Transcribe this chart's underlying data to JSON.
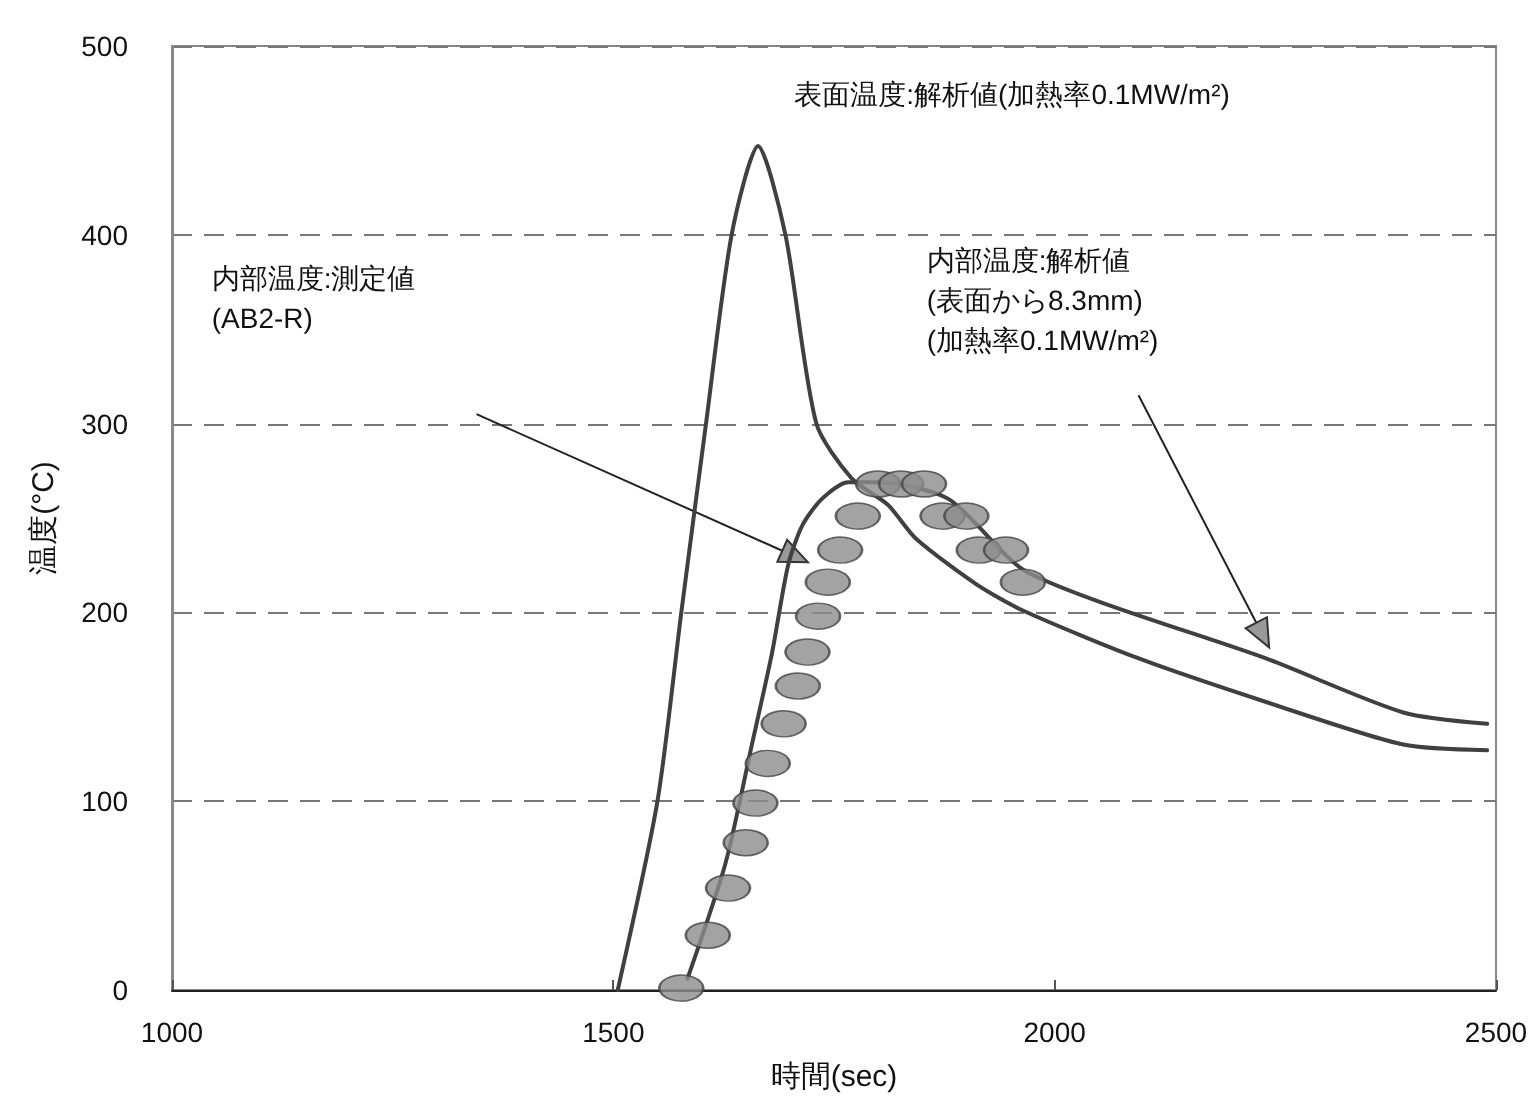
{
  "chart_data": {
    "type": "line",
    "xlabel": "時間(sec)",
    "ylabel": "温度(°C)",
    "xlim": [
      1000,
      2500
    ],
    "xticks": [
      1000,
      1500,
      2000,
      2500
    ],
    "ylim": [
      0,
      500
    ],
    "yticks": [
      0,
      100,
      200,
      300,
      400,
      500
    ],
    "grid": "y",
    "line_style": "solid",
    "annotations": [
      "表面温度:解析値(加熱率0.1MW/m²)",
      "内部温度:解析値\n(表面から8.3mm)\n(加熱率0.1MW/m²)",
      "内部温度:測定値\n(AB2-R)"
    ],
    "series": [
      {
        "marker": "none",
        "color": "#404040",
        "x": [
          1505,
          1550,
          1577,
          1605,
          1634,
          1664,
          1695,
          1730,
          1770,
          1811,
          1843,
          1911,
          1964,
          2093,
          2243,
          2395,
          2490
        ],
        "values": [
          0,
          100,
          200,
          300,
          400,
          447,
          400,
          300,
          271,
          257,
          239,
          215,
          201,
          176,
          152,
          130,
          127
        ]
      },
      {
        "marker": "none",
        "color": "#404040",
        "x": [
          1584,
          1627,
          1657,
          1680,
          1698,
          1714,
          1736,
          1766,
          1800,
          1880,
          1970,
          2243,
          2395,
          2490
        ],
        "values": [
          6,
          67,
          130,
          179,
          225,
          246,
          260,
          269,
          269,
          260,
          221,
          175,
          147,
          141
        ]
      },
      {
        "type": "scatter",
        "marker": "circle",
        "color": "#8c8c8c",
        "x": [
          1577,
          1607,
          1630,
          1650,
          1661,
          1675,
          1693,
          1709,
          1720,
          1732,
          1743,
          1757,
          1777,
          1800,
          1826,
          1852,
          1873,
          1900,
          1914,
          1945,
          1964
        ],
        "values": [
          1,
          29,
          54,
          78,
          99,
          120,
          141,
          161,
          179,
          198,
          216,
          233,
          251,
          268,
          268,
          268,
          251,
          251,
          233,
          233,
          216
        ]
      }
    ]
  }
}
